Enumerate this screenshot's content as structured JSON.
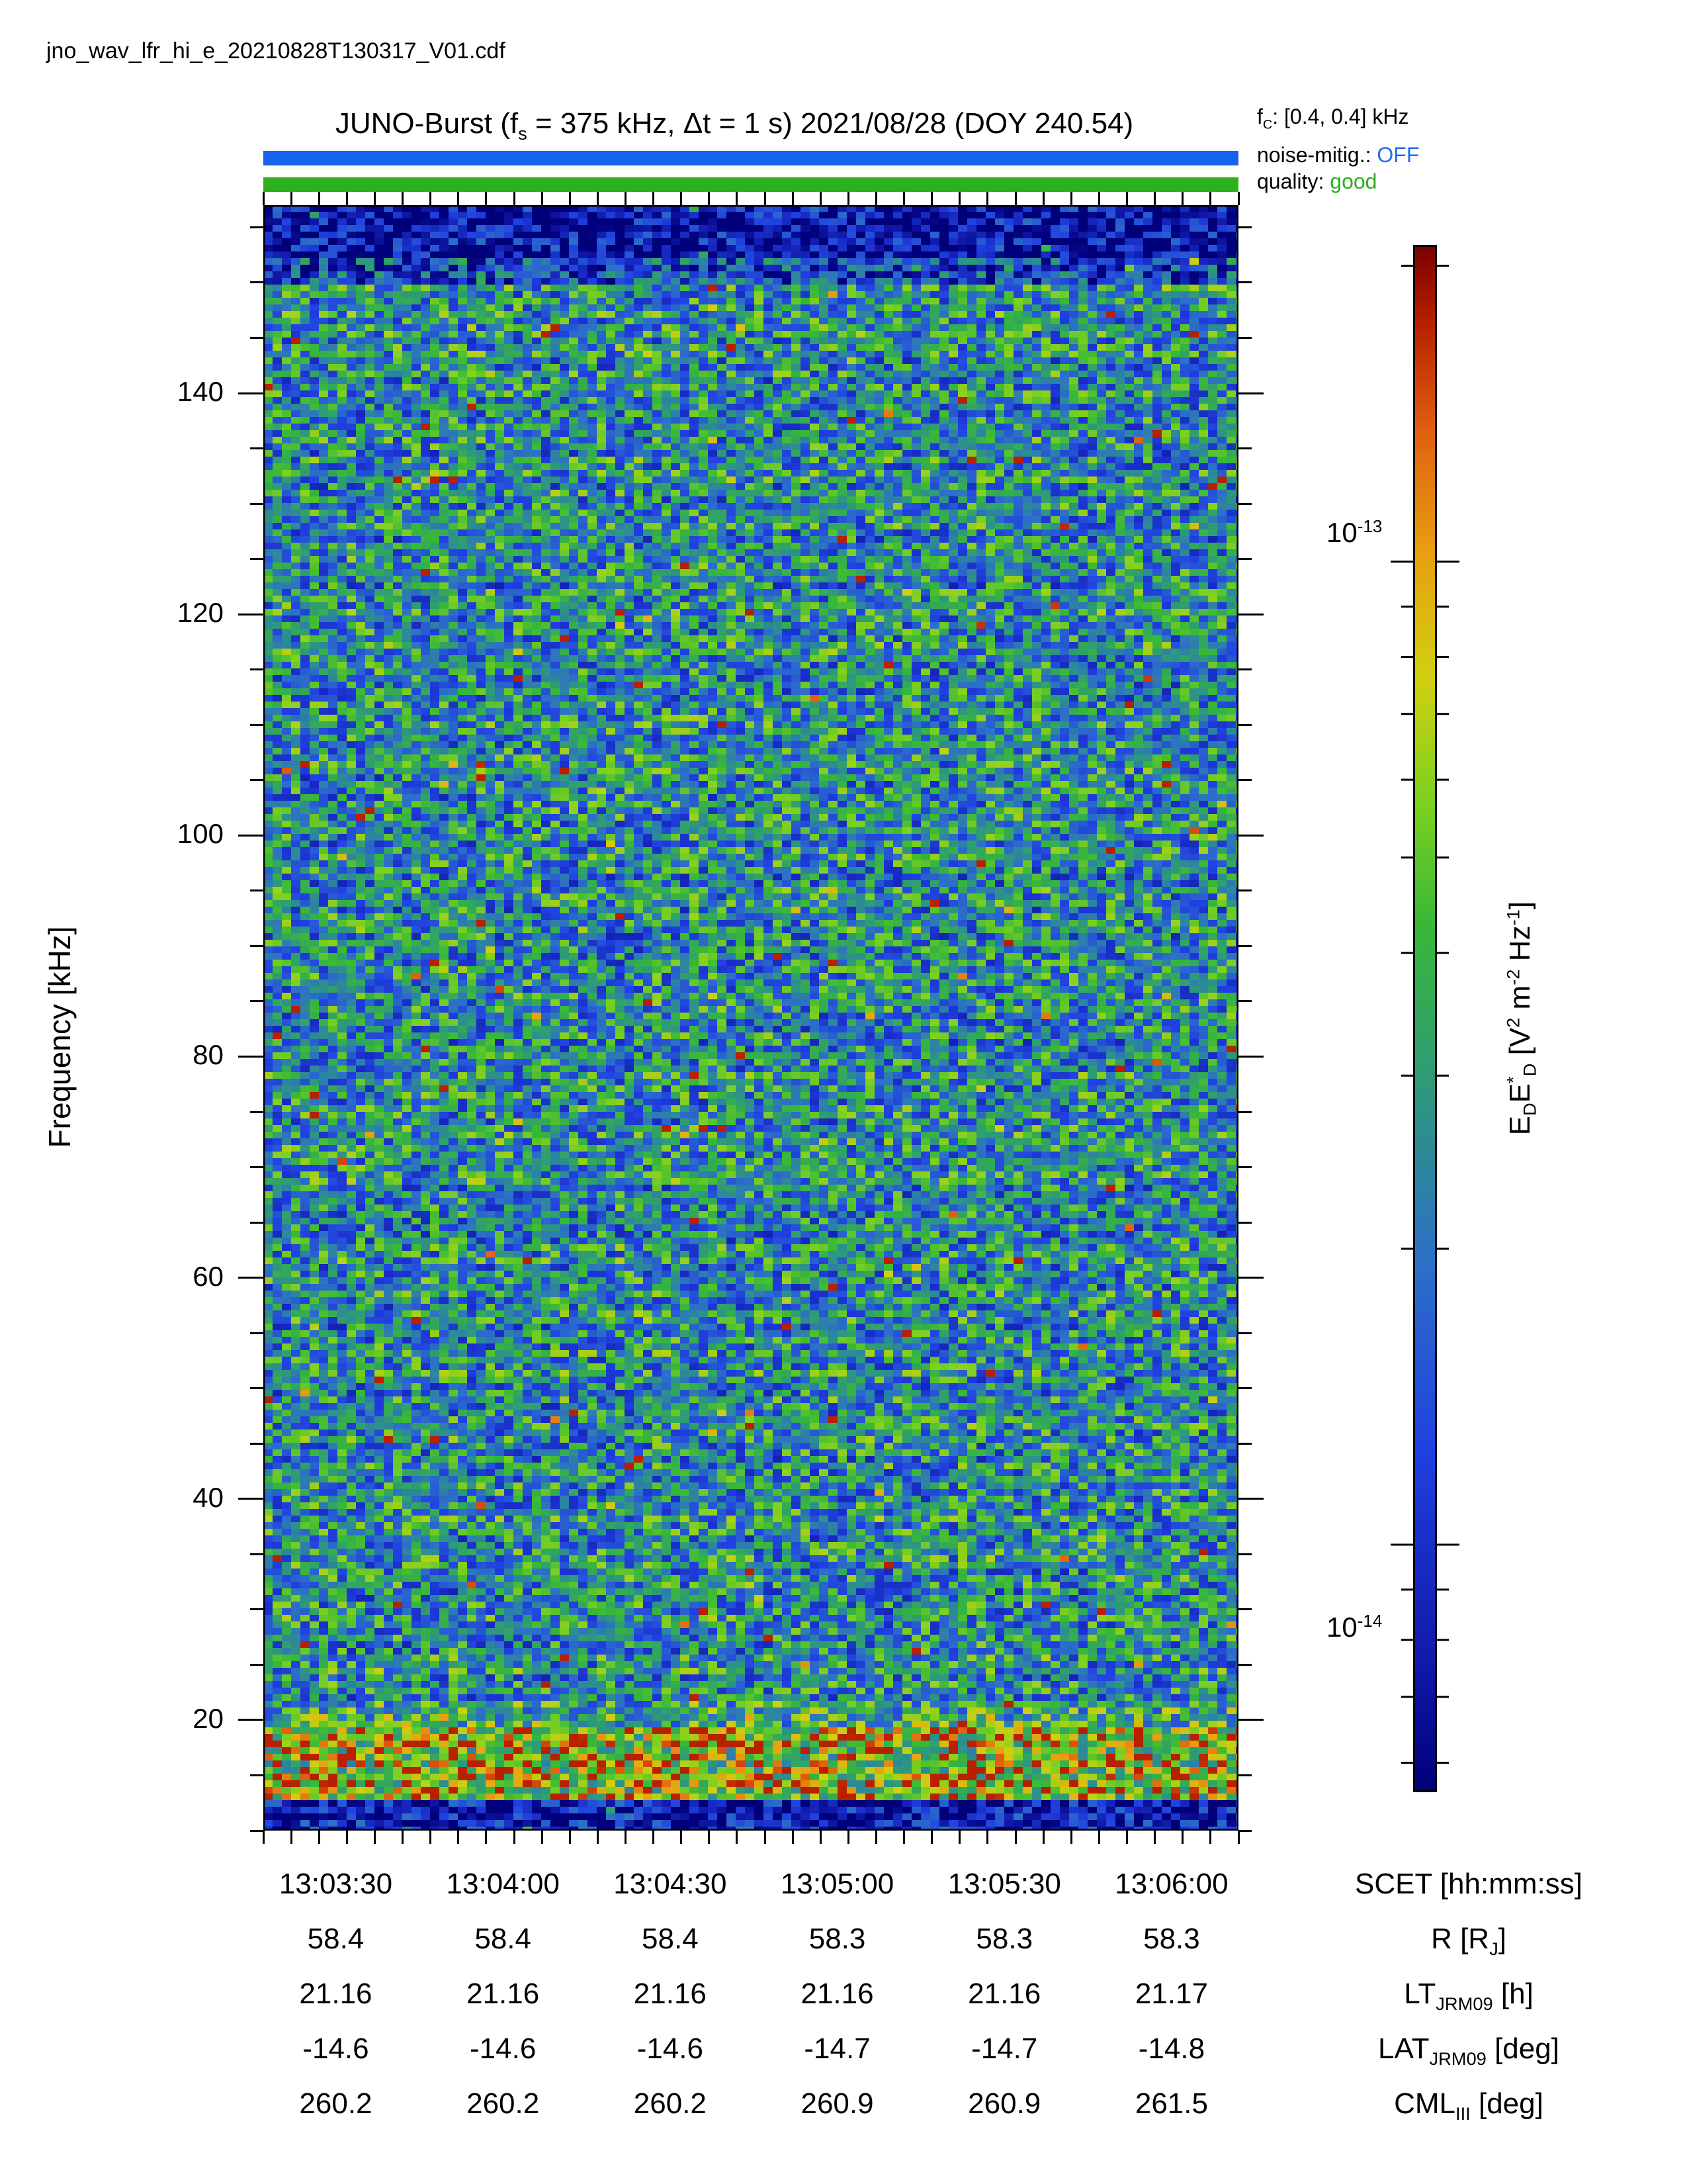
{
  "filename": "jno_wav_lfr_hi_e_20210828T130317_V01.cdf",
  "title": "JUNO-Burst (fₛ = 375 kHz, Δt = 1 s)  2021/08/28 (DOY 240.54)",
  "side_info": {
    "fc_label": "fᴄ: [0.4, 0.4] kHz",
    "noise_label": "noise-mitig.:",
    "noise_value": "OFF",
    "quality_label": "quality:",
    "quality_value": "good"
  },
  "colors": {
    "noise_bar": "#1464f0",
    "quality_bar": "#2cb01c",
    "colormap": "jet"
  },
  "chart_data": {
    "type": "heatmap",
    "ylabel": "Frequency [kHz]",
    "ylim": [
      10,
      157
    ],
    "yticks": [
      20,
      40,
      60,
      80,
      100,
      120,
      140
    ],
    "xlim": [
      "13:03:17",
      "13:06:12"
    ],
    "xticks": [
      "13:03:30",
      "13:04:00",
      "13:04:30",
      "13:05:00",
      "13:05:30",
      "13:06:00"
    ],
    "colorbar": {
      "label": "EᴅE*ᴅ [V² m⁻² Hz⁻¹]",
      "scale": "log",
      "ticks": [
        "10⁻¹³",
        "10⁻¹⁴"
      ],
      "tick_values": [
        1e-13,
        1e-14
      ]
    },
    "features": [
      {
        "description": "enhanced emission band",
        "freq_range": [
          12,
          19
        ]
      }
    ]
  },
  "ephemeris": {
    "rows": [
      {
        "label": "SCET [hh:mm:ss]",
        "values": [
          "13:03:30",
          "13:04:00",
          "13:04:30",
          "13:05:00",
          "13:05:30",
          "13:06:00"
        ]
      },
      {
        "label": "R [Rⱼ]",
        "values": [
          "58.4",
          "58.4",
          "58.4",
          "58.3",
          "58.3",
          "58.3"
        ]
      },
      {
        "label": "LTⱼᴿᴹ₀₉ [h]",
        "values": [
          "21.16",
          "21.16",
          "21.16",
          "21.16",
          "21.16",
          "21.17"
        ]
      },
      {
        "label": "LATⱼᴿᴹ₀₉ [deg]",
        "values": [
          "-14.6",
          "-14.6",
          "-14.6",
          "-14.7",
          "-14.7",
          "-14.8"
        ]
      },
      {
        "label": "CMLᴵᴵᴵ [deg]",
        "values": [
          "260.2",
          "260.2",
          "260.2",
          "260.9",
          "260.9",
          "261.5"
        ]
      }
    ]
  }
}
